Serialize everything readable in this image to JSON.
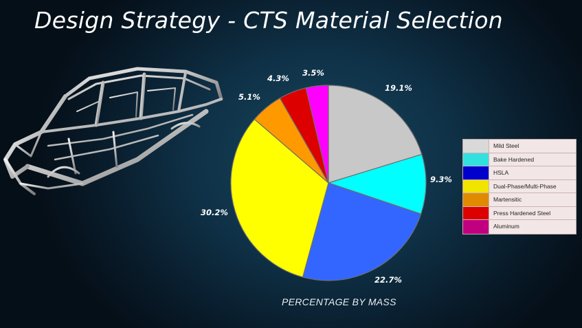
{
  "slide": {
    "title": "Design Strategy - CTS Material Selection"
  },
  "chart_data": {
    "type": "pie",
    "title": "",
    "caption": "PERCENTAGE BY MASS",
    "legend_position": "right",
    "slices": [
      {
        "name": "Mild Steel",
        "value": 19.1,
        "label": "19.1%",
        "color": "#c8c8c8"
      },
      {
        "name": "Bake Hardened",
        "value": 9.3,
        "label": "9.3%",
        "color": "#00ffff"
      },
      {
        "name": "HSLA",
        "value": 22.7,
        "label": "22.7%",
        "color": "#3366ff"
      },
      {
        "name": "Dual-Phase/Multi-Phase",
        "value": 30.2,
        "label": "30.2%",
        "color": "#ffff00"
      },
      {
        "name": "Martensitic",
        "value": 5.1,
        "label": "5.1%",
        "color": "#ff9900"
      },
      {
        "name": "Press Hardened Steel",
        "value": 4.3,
        "label": "4.3%",
        "color": "#dd0000"
      },
      {
        "name": "Aluminum",
        "value": 3.5,
        "label": "3.5%",
        "color": "#ff00ff"
      }
    ],
    "legend": [
      {
        "name": "Mild Steel",
        "color": "#d9d9d9"
      },
      {
        "name": "Bake Hardened",
        "color": "#33e0e0"
      },
      {
        "name": "HSLA",
        "color": "#0000cc"
      },
      {
        "name": "Dual-Phase/Multi-Phase",
        "color": "#f0e400"
      },
      {
        "name": "Martensitic",
        "color": "#e08a00"
      },
      {
        "name": "Press Hardened Steel",
        "color": "#dd0000"
      },
      {
        "name": "Aluminum",
        "color": "#c00080"
      }
    ]
  },
  "image": {
    "icon": "car-body-in-white-icon"
  }
}
